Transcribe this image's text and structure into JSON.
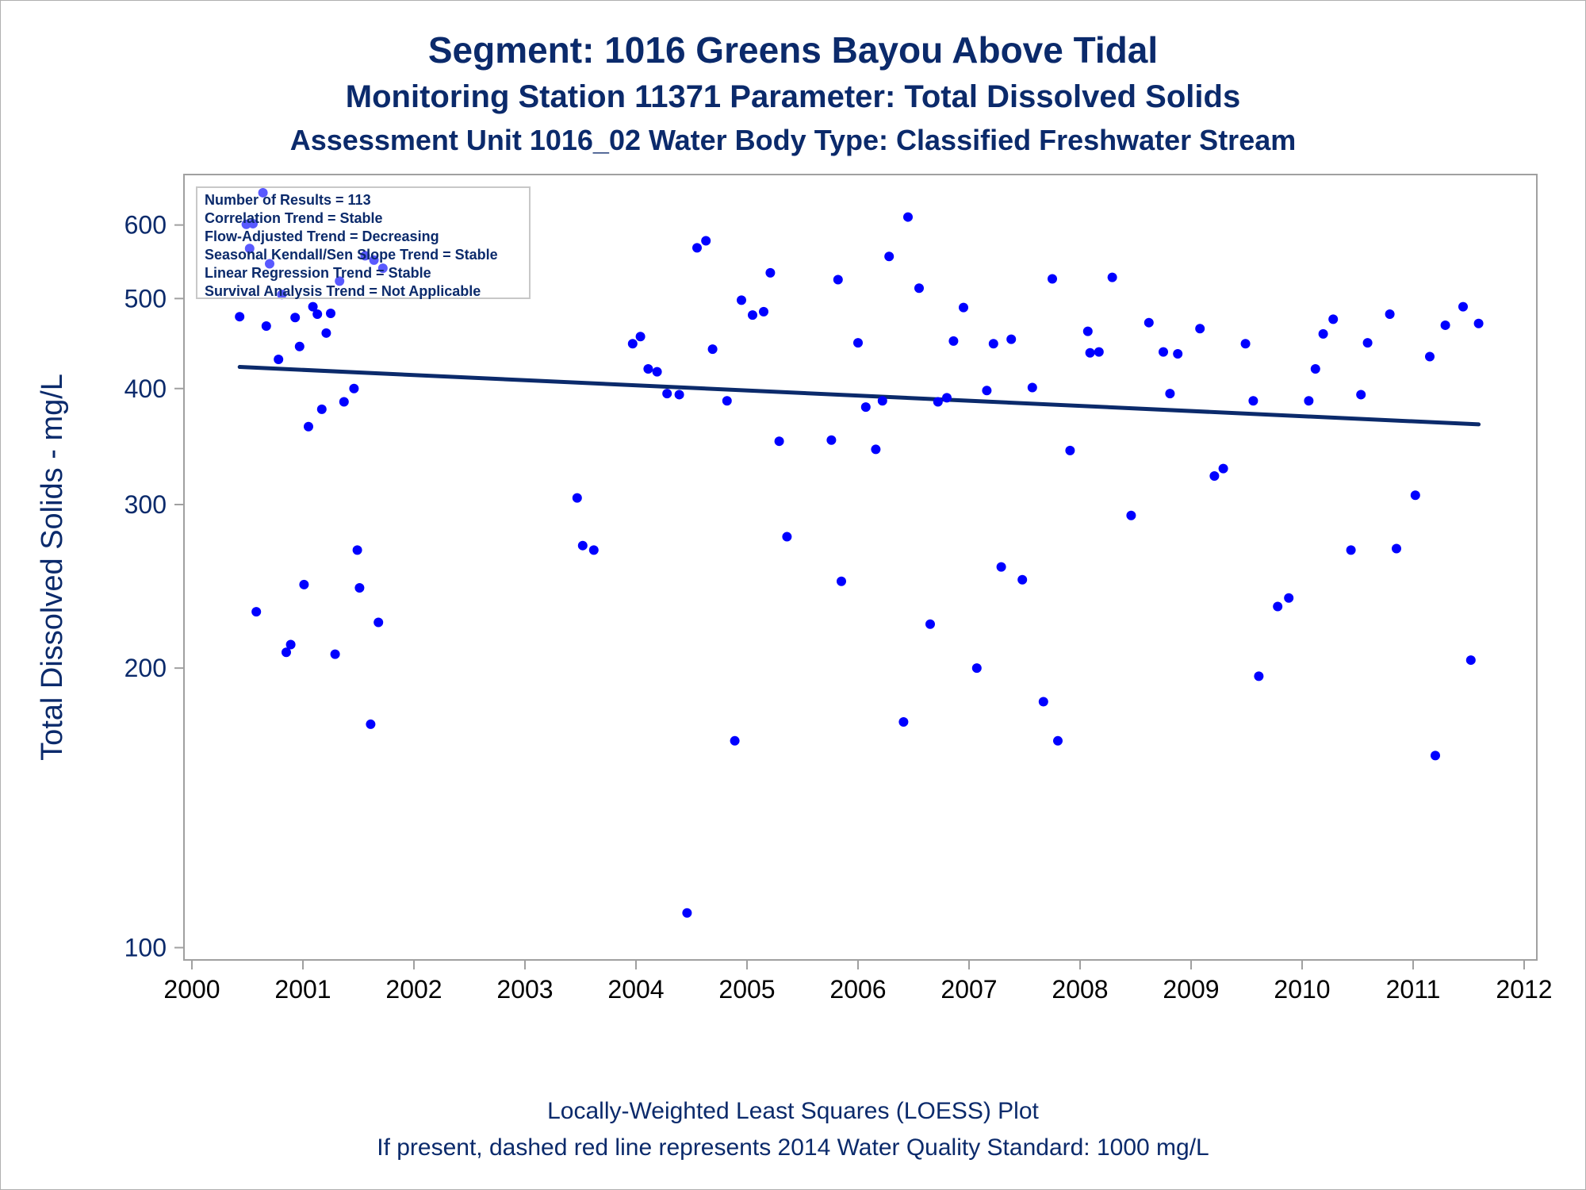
{
  "titles": {
    "line1": "Segment: 1016  Greens Bayou Above Tidal",
    "line2": "Monitoring Station 11371 Parameter: Total Dissolved Solids",
    "line3": "Assessment Unit 1016_02   Water Body Type: Classified Freshwater Stream"
  },
  "footnotes": {
    "line1": "Locally-Weighted Least Squares (LOESS) Plot",
    "line2": "If present, dashed red line represents 2014 Water Quality Standard: 1000  mg/L"
  },
  "stats_box": [
    "Number of Results = 113",
    "Correlation Trend = Stable",
    "Flow-Adjusted Trend = Decreasing",
    "Seasonal Kendall/Sen Slope Trend = Stable",
    "Linear Regression Trend = Stable",
    "Survival Analysis Trend = Not Applicable"
  ],
  "colors": {
    "points": "#0000ff",
    "trend_line": "#0b2a6b",
    "text": "#0b2a6b",
    "frame": "#a0a0a0"
  },
  "chart_data": {
    "type": "scatter",
    "ylabel": "Total Dissolved Solids - mg/L",
    "xlabel": "",
    "y_scale": "log",
    "xlim": [
      2000,
      2012
    ],
    "ylim": [
      97,
      680
    ],
    "x_ticks": [
      2000,
      2001,
      2002,
      2003,
      2004,
      2005,
      2006,
      2007,
      2008,
      2009,
      2010,
      2011,
      2012
    ],
    "y_ticks": [
      100,
      200,
      300,
      400,
      500,
      600
    ],
    "grid": false,
    "legend": "none",
    "points": [
      {
        "x": 2000.43,
        "y": 478
      },
      {
        "x": 2000.49,
        "y": 601
      },
      {
        "x": 2000.52,
        "y": 566
      },
      {
        "x": 2000.55,
        "y": 602
      },
      {
        "x": 2000.58,
        "y": 230
      },
      {
        "x": 2000.64,
        "y": 650
      },
      {
        "x": 2000.67,
        "y": 467
      },
      {
        "x": 2000.7,
        "y": 545
      },
      {
        "x": 2000.78,
        "y": 430
      },
      {
        "x": 2000.81,
        "y": 505
      },
      {
        "x": 2000.85,
        "y": 208
      },
      {
        "x": 2000.89,
        "y": 212
      },
      {
        "x": 2000.93,
        "y": 477
      },
      {
        "x": 2000.97,
        "y": 444
      },
      {
        "x": 2001.01,
        "y": 246
      },
      {
        "x": 2001.05,
        "y": 364
      },
      {
        "x": 2001.09,
        "y": 490
      },
      {
        "x": 2001.13,
        "y": 481
      },
      {
        "x": 2001.17,
        "y": 380
      },
      {
        "x": 2001.21,
        "y": 459
      },
      {
        "x": 2001.25,
        "y": 482
      },
      {
        "x": 2001.29,
        "y": 207
      },
      {
        "x": 2001.33,
        "y": 522
      },
      {
        "x": 2001.37,
        "y": 387
      },
      {
        "x": 2001.46,
        "y": 400
      },
      {
        "x": 2001.49,
        "y": 268
      },
      {
        "x": 2001.51,
        "y": 244
      },
      {
        "x": 2001.56,
        "y": 556
      },
      {
        "x": 2001.61,
        "y": 174
      },
      {
        "x": 2001.64,
        "y": 550
      },
      {
        "x": 2001.68,
        "y": 224
      },
      {
        "x": 2001.72,
        "y": 539
      },
      {
        "x": 2003.47,
        "y": 305
      },
      {
        "x": 2003.52,
        "y": 271
      },
      {
        "x": 2003.62,
        "y": 268
      },
      {
        "x": 2003.97,
        "y": 447
      },
      {
        "x": 2004.04,
        "y": 455
      },
      {
        "x": 2004.11,
        "y": 420
      },
      {
        "x": 2004.19,
        "y": 417
      },
      {
        "x": 2004.28,
        "y": 395
      },
      {
        "x": 2004.39,
        "y": 394
      },
      {
        "x": 2004.46,
        "y": 109
      },
      {
        "x": 2004.55,
        "y": 567
      },
      {
        "x": 2004.63,
        "y": 577
      },
      {
        "x": 2004.69,
        "y": 441
      },
      {
        "x": 2004.82,
        "y": 388
      },
      {
        "x": 2004.89,
        "y": 167
      },
      {
        "x": 2004.95,
        "y": 498
      },
      {
        "x": 2005.05,
        "y": 480
      },
      {
        "x": 2005.15,
        "y": 484
      },
      {
        "x": 2005.21,
        "y": 533
      },
      {
        "x": 2005.29,
        "y": 351
      },
      {
        "x": 2005.36,
        "y": 277
      },
      {
        "x": 2005.76,
        "y": 352
      },
      {
        "x": 2005.82,
        "y": 524
      },
      {
        "x": 2005.85,
        "y": 248
      },
      {
        "x": 2006.0,
        "y": 448
      },
      {
        "x": 2006.07,
        "y": 382
      },
      {
        "x": 2006.16,
        "y": 344
      },
      {
        "x": 2006.22,
        "y": 388
      },
      {
        "x": 2006.28,
        "y": 555
      },
      {
        "x": 2006.41,
        "y": 175
      },
      {
        "x": 2006.45,
        "y": 612
      },
      {
        "x": 2006.55,
        "y": 513
      },
      {
        "x": 2006.65,
        "y": 223
      },
      {
        "x": 2006.72,
        "y": 387
      },
      {
        "x": 2006.8,
        "y": 391
      },
      {
        "x": 2006.86,
        "y": 450
      },
      {
        "x": 2006.95,
        "y": 489
      },
      {
        "x": 2007.07,
        "y": 200
      },
      {
        "x": 2007.16,
        "y": 398
      },
      {
        "x": 2007.22,
        "y": 447
      },
      {
        "x": 2007.29,
        "y": 257
      },
      {
        "x": 2007.38,
        "y": 452
      },
      {
        "x": 2007.48,
        "y": 249
      },
      {
        "x": 2007.57,
        "y": 401
      },
      {
        "x": 2007.67,
        "y": 184
      },
      {
        "x": 2007.75,
        "y": 525
      },
      {
        "x": 2007.8,
        "y": 167
      },
      {
        "x": 2007.91,
        "y": 343
      },
      {
        "x": 2008.07,
        "y": 461
      },
      {
        "x": 2008.09,
        "y": 437
      },
      {
        "x": 2008.17,
        "y": 438
      },
      {
        "x": 2008.29,
        "y": 527
      },
      {
        "x": 2008.46,
        "y": 292
      },
      {
        "x": 2008.62,
        "y": 471
      },
      {
        "x": 2008.75,
        "y": 438
      },
      {
        "x": 2008.81,
        "y": 395
      },
      {
        "x": 2008.88,
        "y": 436
      },
      {
        "x": 2009.08,
        "y": 464
      },
      {
        "x": 2009.21,
        "y": 322
      },
      {
        "x": 2009.29,
        "y": 328
      },
      {
        "x": 2009.49,
        "y": 447
      },
      {
        "x": 2009.56,
        "y": 388
      },
      {
        "x": 2009.61,
        "y": 196
      },
      {
        "x": 2009.78,
        "y": 233
      },
      {
        "x": 2009.88,
        "y": 238
      },
      {
        "x": 2010.06,
        "y": 388
      },
      {
        "x": 2010.12,
        "y": 420
      },
      {
        "x": 2010.19,
        "y": 458
      },
      {
        "x": 2010.28,
        "y": 475
      },
      {
        "x": 2010.44,
        "y": 268
      },
      {
        "x": 2010.53,
        "y": 394
      },
      {
        "x": 2010.59,
        "y": 448
      },
      {
        "x": 2010.79,
        "y": 481
      },
      {
        "x": 2010.85,
        "y": 269
      },
      {
        "x": 2011.02,
        "y": 307
      },
      {
        "x": 2011.15,
        "y": 433
      },
      {
        "x": 2011.2,
        "y": 161
      },
      {
        "x": 2011.29,
        "y": 468
      },
      {
        "x": 2011.45,
        "y": 490
      },
      {
        "x": 2011.52,
        "y": 204
      },
      {
        "x": 2011.59,
        "y": 470
      }
    ],
    "trend_line": {
      "x": [
        2000.43,
        2011.59
      ],
      "y": [
        422,
        366
      ]
    }
  }
}
